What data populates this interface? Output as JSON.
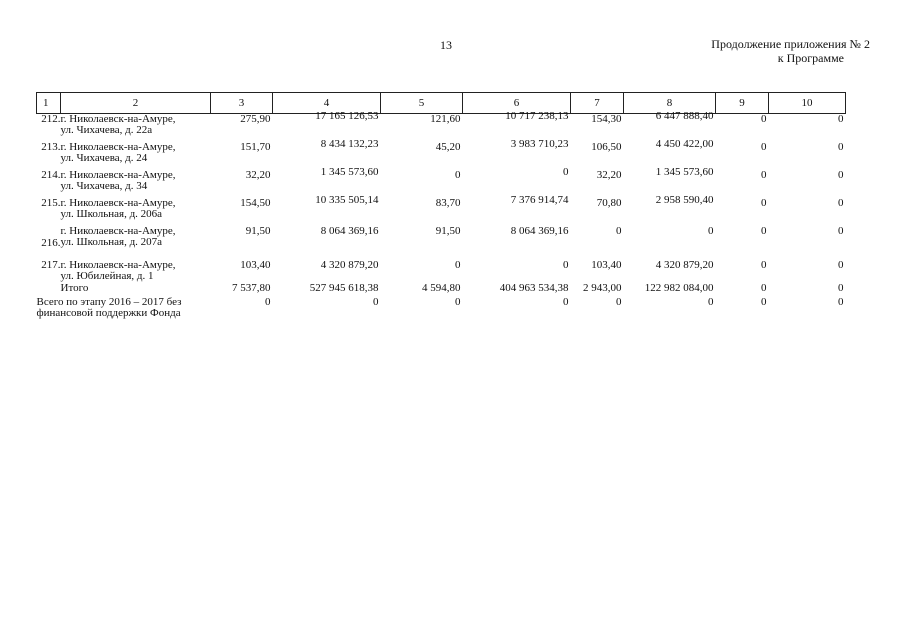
{
  "page_number": "13",
  "appendix": {
    "line1": "Продолжение приложения № 2",
    "line2": "к Программе"
  },
  "table": {
    "headers": [
      "1",
      "2",
      "3",
      "4",
      "5",
      "6",
      "7",
      "8",
      "9",
      "10"
    ],
    "rows": [
      {
        "no": "212.",
        "addr1": "г. Николаевск-на-Амуре,",
        "addr2": "ул. Чихачева, д. 22а",
        "c3": "275,90",
        "c4": "17 165 126,53",
        "c5": "121,60",
        "c6": "10 717 238,13",
        "c7": "154,30",
        "c8": "6 447 888,40",
        "c9": "0",
        "c10": "0"
      },
      {
        "no": "213.",
        "addr1": "г. Николаевск-на-Амуре,",
        "addr2": "ул. Чихачева, д. 24",
        "c3": "151,70",
        "c4": "8 434 132,23",
        "c5": "45,20",
        "c6": "3 983 710,23",
        "c7": "106,50",
        "c8": "4 450 422,00",
        "c9": "0",
        "c10": "0"
      },
      {
        "no": "214.",
        "addr1": "г. Николаевск-на-Амуре,",
        "addr2": "ул. Чихачева, д. 34",
        "c3": "32,20",
        "c4": "1 345 573,60",
        "c5": "0",
        "c6": "0",
        "c7": "32,20",
        "c8": "1 345 573,60",
        "c9": "0",
        "c10": "0"
      },
      {
        "no": "215.",
        "addr1": "г. Николаевск-на-Амуре,",
        "addr2": "ул. Школьная, д. 206а",
        "c3": "154,50",
        "c4": "10 335 505,14",
        "c5": "83,70",
        "c6": "7 376 914,74",
        "c7": "70,80",
        "c8": "2 958 590,40",
        "c9": "0",
        "c10": "0"
      },
      {
        "no": "216.",
        "addr1": "г. Николаевск-на-Амуре,",
        "addr2": "ул. Школьная, д. 207а",
        "c3": "91,50",
        "c4": "8 064 369,16",
        "c5": "91,50",
        "c6": "8 064 369,16",
        "c7": "0",
        "c8": "0",
        "c9": "0",
        "c10": "0"
      },
      {
        "no": "217.",
        "addr1": "г. Николаевск-на-Амуре,",
        "addr2": "ул. Юбилейная, д. 1",
        "c3": "103,40",
        "c4": "4 320 879,20",
        "c5": "0",
        "c6": "0",
        "c7": "103,40",
        "c8": "4 320 879,20",
        "c9": "0",
        "c10": "0"
      }
    ],
    "total": {
      "label": "Итого",
      "c3": "7 537,80",
      "c4": "527 945 618,38",
      "c5": "4 594,80",
      "c6": "404 963 534,38",
      "c7": "2 943,00",
      "c8": "122 982 084,00",
      "c9": "0",
      "c10": "0"
    },
    "stage": {
      "label1": "Всего по этапу 2016 – 2017 без",
      "label2": "финансовой поддержки Фонда",
      "c3": "0",
      "c4": "0",
      "c5": "0",
      "c6": "0",
      "c7": "0",
      "c8": "0",
      "c9": "0",
      "c10": "0"
    }
  }
}
